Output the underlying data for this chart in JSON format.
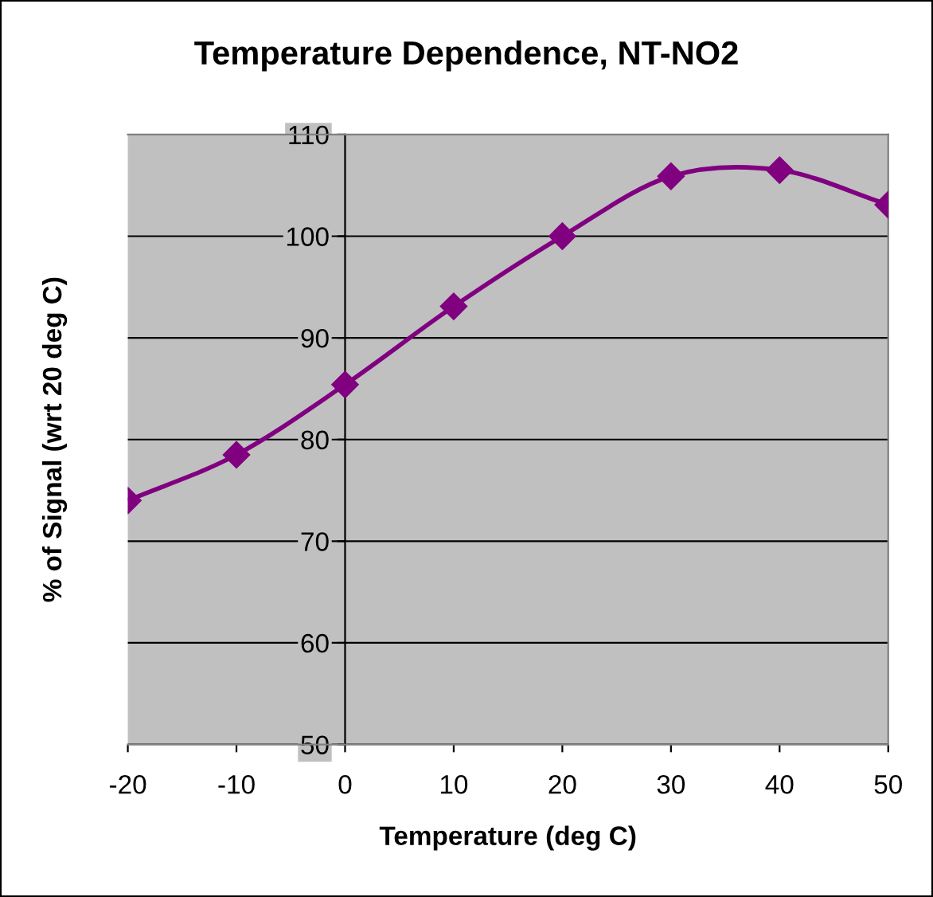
{
  "chart_data": {
    "type": "line",
    "title": "Temperature Dependence, NT-NO2",
    "xlabel": "Temperature (deg C)",
    "ylabel": "% of Signal (wrt 20 deg C)",
    "x": [
      -20,
      -10,
      0,
      10,
      20,
      30,
      40,
      50
    ],
    "series": [
      {
        "color": "#800080",
        "values": [
          74.0,
          78.5,
          85.4,
          93.1,
          100.0,
          105.9,
          106.5,
          103.1
        ]
      }
    ],
    "xlim": [
      -20,
      50
    ],
    "xticks": [
      -20,
      -10,
      0,
      10,
      20,
      30,
      40,
      50
    ],
    "ylim": [
      50,
      110
    ],
    "yticks": [
      50,
      60,
      70,
      80,
      90,
      100,
      110
    ],
    "grid": "y",
    "legend": false,
    "marker": "diamond",
    "line_style": "solid"
  }
}
